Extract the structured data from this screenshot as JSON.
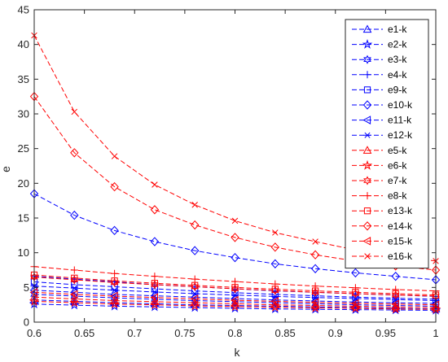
{
  "chart_data": {
    "type": "line",
    "xlabel": "k",
    "ylabel": "e",
    "xlim": [
      0.6,
      1.0
    ],
    "ylim": [
      0,
      45
    ],
    "x_ticks": [
      "0.6",
      "0.65",
      "0.7",
      "0.75",
      "0.8",
      "0.85",
      "0.9",
      "0.95",
      "1"
    ],
    "y_ticks": [
      "0",
      "5",
      "10",
      "15",
      "20",
      "25",
      "30",
      "35",
      "40",
      "45"
    ],
    "grid": false,
    "legend_position": "top-right",
    "x": [
      0.6,
      0.64,
      0.68,
      0.72,
      0.76,
      0.8,
      0.84,
      0.88,
      0.92,
      0.96,
      1.0
    ],
    "series": [
      {
        "name": "e1-k",
        "color": "#0000ff",
        "marker": "triangle",
        "values": [
          3.2,
          3.0,
          2.8,
          2.65,
          2.5,
          2.4,
          2.3,
          2.2,
          2.1,
          2.0,
          1.9
        ]
      },
      {
        "name": "e2-k",
        "color": "#0000ff",
        "marker": "pentagram",
        "values": [
          2.6,
          2.45,
          2.3,
          2.2,
          2.1,
          2.0,
          1.9,
          1.85,
          1.8,
          1.75,
          1.7
        ]
      },
      {
        "name": "e3-k",
        "color": "#0000ff",
        "marker": "hexagram",
        "values": [
          4.0,
          3.75,
          3.5,
          3.3,
          3.1,
          2.95,
          2.8,
          2.65,
          2.5,
          2.4,
          2.3
        ]
      },
      {
        "name": "e4-k",
        "color": "#0000ff",
        "marker": "plus",
        "values": [
          6.6,
          6.2,
          5.8,
          5.4,
          5.1,
          4.8,
          4.5,
          4.3,
          4.1,
          3.9,
          3.7
        ]
      },
      {
        "name": "e9-k",
        "color": "#0000ff",
        "marker": "square",
        "values": [
          5.8,
          5.4,
          5.1,
          4.8,
          4.5,
          4.25,
          4.0,
          3.8,
          3.6,
          3.45,
          3.3
        ]
      },
      {
        "name": "e10-k",
        "color": "#0000ff",
        "marker": "diamond",
        "values": [
          18.5,
          15.4,
          13.2,
          11.6,
          10.3,
          9.3,
          8.4,
          7.7,
          7.1,
          6.6,
          6.1
        ]
      },
      {
        "name": "e11-k",
        "color": "#0000ff",
        "marker": "triangle-left",
        "values": [
          4.6,
          4.3,
          4.0,
          3.8,
          3.6,
          3.4,
          3.2,
          3.05,
          2.9,
          2.8,
          2.7
        ]
      },
      {
        "name": "e12-k",
        "color": "#0000ff",
        "marker": "asterisk",
        "values": [
          5.2,
          4.9,
          4.6,
          4.35,
          4.1,
          3.9,
          3.7,
          3.55,
          3.4,
          3.25,
          3.1
        ]
      },
      {
        "name": "e5-k",
        "color": "#ff0000",
        "marker": "triangle",
        "values": [
          3.6,
          3.35,
          3.1,
          2.95,
          2.8,
          2.65,
          2.5,
          2.4,
          2.3,
          2.2,
          2.1
        ]
      },
      {
        "name": "e6-k",
        "color": "#ff0000",
        "marker": "pentagram",
        "values": [
          3.0,
          2.8,
          2.6,
          2.5,
          2.35,
          2.25,
          2.15,
          2.05,
          2.0,
          1.9,
          1.85
        ]
      },
      {
        "name": "e7-k",
        "color": "#ff0000",
        "marker": "hexagram",
        "values": [
          6.5,
          6.1,
          5.7,
          5.4,
          5.1,
          4.8,
          4.55,
          4.3,
          4.1,
          3.9,
          3.75
        ]
      },
      {
        "name": "e8-k",
        "color": "#ff0000",
        "marker": "plus",
        "values": [
          8.0,
          7.5,
          7.0,
          6.6,
          6.2,
          5.85,
          5.5,
          5.2,
          4.95,
          4.7,
          4.5
        ]
      },
      {
        "name": "e13-k",
        "color": "#ff0000",
        "marker": "square",
        "values": [
          6.8,
          6.35,
          5.95,
          5.6,
          5.3,
          5.0,
          4.75,
          4.5,
          4.3,
          4.1,
          3.9
        ]
      },
      {
        "name": "e14-k",
        "color": "#ff0000",
        "marker": "diamond",
        "values": [
          32.5,
          24.4,
          19.5,
          16.2,
          14.0,
          12.2,
          10.8,
          9.7,
          8.8,
          8.1,
          7.5
        ]
      },
      {
        "name": "e15-k",
        "color": "#ff0000",
        "marker": "triangle-left",
        "values": [
          4.3,
          4.0,
          3.75,
          3.55,
          3.35,
          3.15,
          3.0,
          2.85,
          2.7,
          2.6,
          2.5
        ]
      },
      {
        "name": "e16-k",
        "color": "#ff0000",
        "marker": "x",
        "values": [
          41.3,
          30.3,
          23.9,
          19.8,
          16.9,
          14.6,
          12.9,
          11.6,
          10.4,
          9.5,
          8.8
        ]
      }
    ]
  }
}
